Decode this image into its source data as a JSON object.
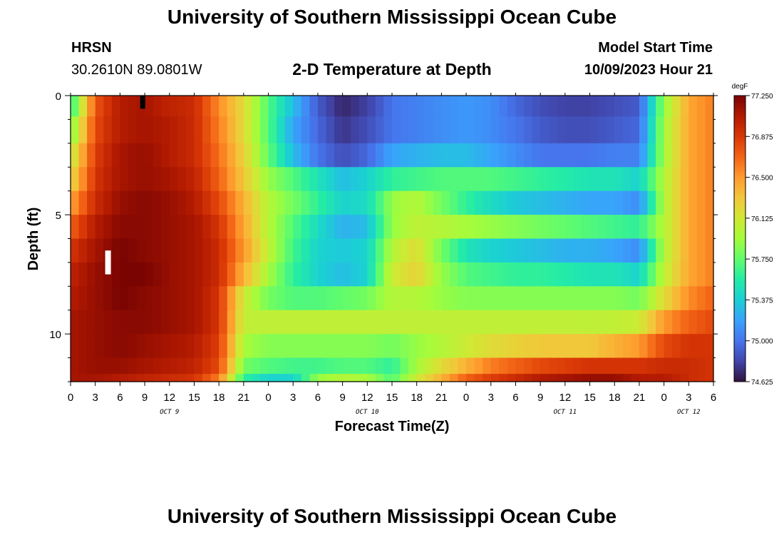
{
  "header": {
    "title": "University of Southern Mississippi Ocean Cube",
    "station_name": "HRSN",
    "station_coords": "30.2610N  89.0801W",
    "plot_title": "2-D Temperature at Depth",
    "model_label": "Model Start Time",
    "model_time": "10/09/2023 Hour 21"
  },
  "footer": {
    "title": "University of Southern Mississippi Ocean Cube"
  },
  "colors": {
    "background": "#ffffff",
    "axis": "#000000"
  },
  "chart_data": {
    "type": "heatmap",
    "title": "2-D Temperature at Depth",
    "xlabel": "Forecast Time(Z)",
    "ylabel": "Depth (ft)",
    "x_tick_labels": [
      "0",
      "3",
      "6",
      "9",
      "12",
      "15",
      "18",
      "21",
      "0",
      "3",
      "6",
      "9",
      "12",
      "15",
      "18",
      "21",
      "0",
      "3",
      "6",
      "9",
      "12",
      "15",
      "18",
      "21",
      "0",
      "3",
      "6"
    ],
    "date_labels": [
      {
        "label": "OCT 9",
        "tick": 4
      },
      {
        "label": "OCT 10",
        "tick": 12
      },
      {
        "label": "OCT 11",
        "tick": 20
      },
      {
        "label": "OCT 12",
        "tick": 25
      }
    ],
    "y_ticks": [
      0,
      5,
      10
    ],
    "ylim": [
      0,
      12
    ],
    "y_reversed": true,
    "x_range_hours": [
      0,
      78
    ],
    "colorbar": {
      "unit": "degF",
      "range": [
        74.625,
        77.25
      ],
      "tick_labels": [
        "77.250",
        "76.875",
        "76.500",
        "76.125",
        "75.750",
        "75.375",
        "75.000",
        "74.625"
      ],
      "palette": [
        "#30123b",
        "#4145ab",
        "#4675ed",
        "#39a2fc",
        "#1bcfd4",
        "#24eca6",
        "#61fc6c",
        "#a4fc3b",
        "#d1e834",
        "#f3c63a",
        "#fe9b2d",
        "#f36315",
        "#d93806",
        "#b11901",
        "#7a0402"
      ]
    },
    "y_centers_ft": [
      0.25,
      1.5,
      2.5,
      3.5,
      4.5,
      5.5,
      6.5,
      7.5,
      8.5,
      9.5,
      10.5,
      11.5,
      11.85
    ],
    "x_hours": [
      0,
      3,
      6,
      9,
      12,
      15,
      18,
      21,
      24,
      27,
      30,
      33,
      36,
      39,
      42,
      45,
      48,
      51,
      54,
      57,
      60,
      63,
      66,
      69,
      72,
      75,
      78
    ],
    "values": [
      [
        75.55,
        76.75,
        77.05,
        77.1,
        77.0,
        76.95,
        76.55,
        76.2,
        75.7,
        75.3,
        74.9,
        74.7,
        74.8,
        75.0,
        75.05,
        75.1,
        75.15,
        75.1,
        74.95,
        74.85,
        74.8,
        74.8,
        74.85,
        74.9,
        75.9,
        76.45,
        76.6
      ],
      [
        75.8,
        76.8,
        77.05,
        77.1,
        77.05,
        76.95,
        76.6,
        76.2,
        75.7,
        75.2,
        74.95,
        74.75,
        74.85,
        75.0,
        75.05,
        75.1,
        75.15,
        75.1,
        75.0,
        74.9,
        74.85,
        74.85,
        74.9,
        74.95,
        75.95,
        76.45,
        76.6
      ],
      [
        76.05,
        76.85,
        77.1,
        77.15,
        77.05,
        76.95,
        76.65,
        76.25,
        75.75,
        75.3,
        75.0,
        74.85,
        74.95,
        75.2,
        75.25,
        75.3,
        75.3,
        75.2,
        75.1,
        75.0,
        75.0,
        75.0,
        75.05,
        75.05,
        75.95,
        76.45,
        76.6
      ],
      [
        76.2,
        76.9,
        77.1,
        77.15,
        77.1,
        77.0,
        76.7,
        76.3,
        75.9,
        75.7,
        75.5,
        75.3,
        75.4,
        75.6,
        75.65,
        75.7,
        75.7,
        75.7,
        75.65,
        75.6,
        75.55,
        75.5,
        75.5,
        75.4,
        76.0,
        76.45,
        76.6
      ],
      [
        76.45,
        76.95,
        77.15,
        77.2,
        77.15,
        77.05,
        76.8,
        76.4,
        76.0,
        75.8,
        75.6,
        75.4,
        75.45,
        75.9,
        76.0,
        75.8,
        75.6,
        75.45,
        75.35,
        75.3,
        75.25,
        75.2,
        75.2,
        75.1,
        76.0,
        76.45,
        76.6
      ],
      [
        76.7,
        77.05,
        77.2,
        77.2,
        77.15,
        77.1,
        76.9,
        76.45,
        76.0,
        75.7,
        75.45,
        75.25,
        75.3,
        75.9,
        76.05,
        76.0,
        75.95,
        75.9,
        75.85,
        75.8,
        75.75,
        75.7,
        75.65,
        75.6,
        76.0,
        76.45,
        76.6
      ],
      [
        76.9,
        77.1,
        77.25,
        77.2,
        77.15,
        77.1,
        76.95,
        76.5,
        76.05,
        75.65,
        75.4,
        75.35,
        75.4,
        76.0,
        76.2,
        75.8,
        75.5,
        75.4,
        75.35,
        75.3,
        75.25,
        75.25,
        75.2,
        75.1,
        76.0,
        76.45,
        76.6
      ],
      [
        77.0,
        77.15,
        77.25,
        77.25,
        77.15,
        77.1,
        76.95,
        76.4,
        75.95,
        75.6,
        75.4,
        75.3,
        75.4,
        76.1,
        76.25,
        75.9,
        75.7,
        75.65,
        75.6,
        75.6,
        75.55,
        75.5,
        75.5,
        75.4,
        76.05,
        76.45,
        76.6
      ],
      [
        77.05,
        77.15,
        77.25,
        77.2,
        77.15,
        77.1,
        76.9,
        76.1,
        75.8,
        75.7,
        75.7,
        75.75,
        75.8,
        76.0,
        76.0,
        75.9,
        75.85,
        75.85,
        75.85,
        75.85,
        75.85,
        75.85,
        75.85,
        75.8,
        76.2,
        76.55,
        76.7
      ],
      [
        77.1,
        77.15,
        77.2,
        77.2,
        77.15,
        77.1,
        76.9,
        76.05,
        76.05,
        76.05,
        76.05,
        76.05,
        76.05,
        76.05,
        76.05,
        76.05,
        76.05,
        76.05,
        76.05,
        76.05,
        76.05,
        76.05,
        76.05,
        76.1,
        76.5,
        76.7,
        76.8
      ],
      [
        77.1,
        77.15,
        77.2,
        77.15,
        77.1,
        77.05,
        76.85,
        75.95,
        75.85,
        75.85,
        75.85,
        75.85,
        75.85,
        75.8,
        75.9,
        76.0,
        76.1,
        76.2,
        76.25,
        76.3,
        76.3,
        76.3,
        76.4,
        76.5,
        76.8,
        76.9,
        76.9
      ],
      [
        77.1,
        77.15,
        77.15,
        77.1,
        77.05,
        77.0,
        76.8,
        75.8,
        75.7,
        75.65,
        75.65,
        75.7,
        75.7,
        75.6,
        75.95,
        76.2,
        76.4,
        76.6,
        76.7,
        76.8,
        76.85,
        76.9,
        76.9,
        76.9,
        76.95,
        76.95,
        76.9
      ],
      [
        77.1,
        77.1,
        77.05,
        77.0,
        76.95,
        76.9,
        76.6,
        75.6,
        75.4,
        75.4,
        75.9,
        76.0,
        75.95,
        75.7,
        76.1,
        76.4,
        76.7,
        76.85,
        76.95,
        77.05,
        77.1,
        77.15,
        77.15,
        77.05,
        77.05,
        76.95,
        76.9
      ]
    ]
  }
}
